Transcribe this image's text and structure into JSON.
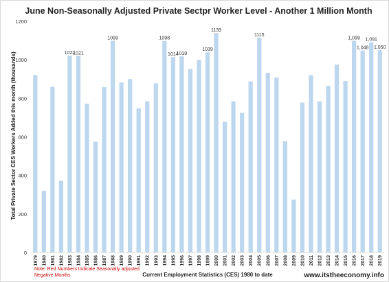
{
  "chart_data": {
    "type": "bar",
    "title": "June Non-Seasonally Adjusted Private Sectpr Worker Level - Another 1 Million Month",
    "ylabel": "Total Private Sector CES Workers Added this month (thousands)",
    "xlabel": "Current Employment Statistics (CES) 1980 to date",
    "ylim": [
      0,
      1200
    ],
    "yticks": [
      0,
      200,
      400,
      600,
      800,
      1000,
      1200
    ],
    "grid": false,
    "categories": [
      "1979",
      "1980",
      "1981",
      "1982",
      "1983",
      "1984",
      "1985",
      "1986",
      "1987",
      "1988",
      "1989",
      "1990",
      "1991",
      "1992",
      "1993",
      "1994",
      "1995",
      "1996",
      "1997",
      "1998",
      "1999",
      "2000",
      "2001",
      "2002",
      "2003",
      "2004",
      "2005",
      "2006",
      "2007",
      "2008",
      "2009",
      "2010",
      "2011",
      "2012",
      "2013",
      "2014",
      "2015",
      "2016",
      "2017",
      "2018",
      "2019"
    ],
    "values": [
      920,
      320,
      860,
      372,
      1022,
      1021,
      772,
      575,
      858,
      1099,
      882,
      900,
      748,
      785,
      878,
      1098,
      1014,
      1018,
      953,
      1000,
      1039,
      1139,
      678,
      785,
      725,
      888,
      1115,
      932,
      908,
      577,
      275,
      778,
      920,
      785,
      865,
      975,
      890,
      1099,
      1048,
      1091,
      1050
    ],
    "data_labels": {
      "1983": "1022",
      "1984": "1021",
      "1988": "1099",
      "1994": "1098",
      "1995": "1014",
      "1996": "1018",
      "1999": "1039",
      "2000": "1139",
      "2005": "1115",
      "2016": "1,099",
      "2017": "1,048",
      "2018": "1,091",
      "2019": "1,050"
    },
    "bar_color": "#bdd7ee",
    "note_color": "#cc0000"
  },
  "note": {
    "line1": "Note: Red Numbers Indicate Seasonally adjusted",
    "line2": "Negative Months"
  },
  "website": "www.itstheeconomy.info"
}
